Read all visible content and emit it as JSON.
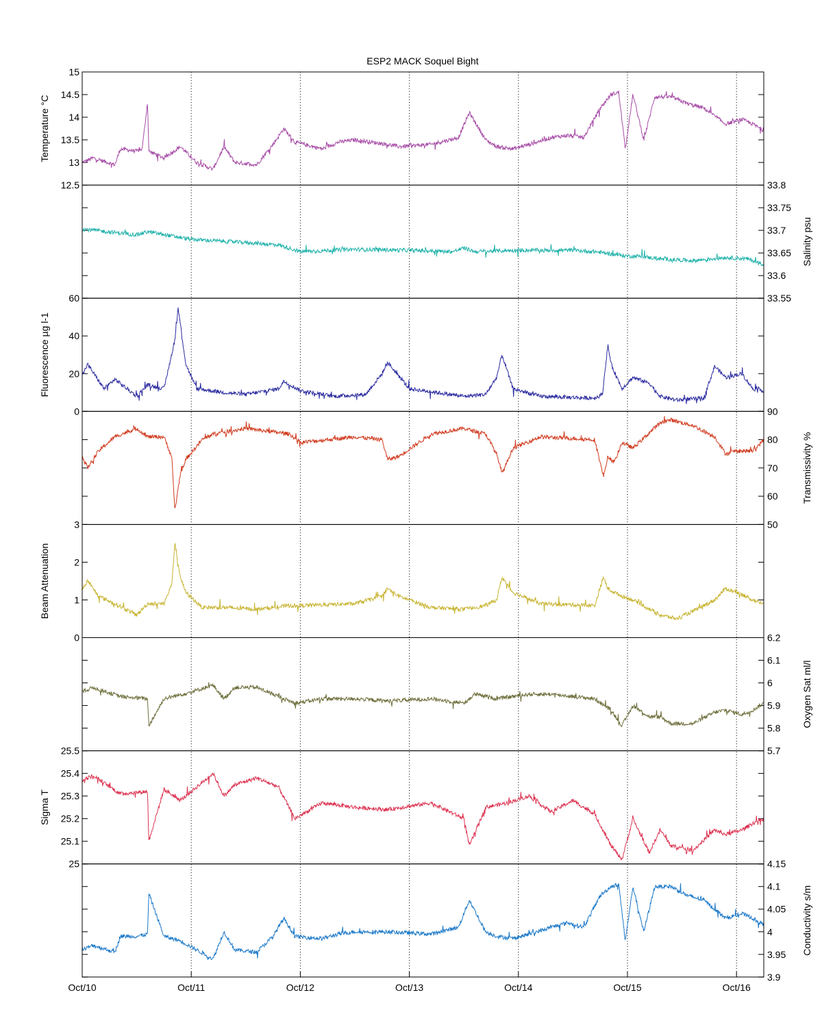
{
  "title": "ESP2 MACK  Soquel Bight",
  "x_ticks": [
    "Oct/10",
    "Oct/11",
    "Oct/12",
    "Oct/13",
    "Oct/14",
    "Oct/15",
    "Oct/16"
  ],
  "chart_data": [
    {
      "type": "line",
      "id": "temperature",
      "ylabel": "Temperature °C",
      "axis_side": "left",
      "ylim": [
        12.5,
        15
      ],
      "yticks": [
        "12.5",
        "13",
        "13.5",
        "14",
        "14.5",
        "15"
      ],
      "color": "#a64ca6",
      "x": [
        0,
        0.1,
        0.3,
        0.35,
        0.5,
        0.55,
        0.6,
        0.61,
        0.75,
        0.9,
        1.05,
        1.2,
        1.3,
        1.4,
        1.6,
        1.75,
        1.85,
        1.95,
        2.2,
        2.35,
        2.5,
        2.8,
        2.9,
        3.2,
        3.45,
        3.55,
        3.7,
        3.8,
        3.95,
        4.1,
        4.3,
        4.45,
        4.6,
        4.75,
        4.85,
        4.92,
        4.98,
        5.05,
        5.15,
        5.25,
        5.4,
        5.55,
        5.7,
        5.9,
        6.05,
        6.15,
        6.25
      ],
      "values": [
        13.0,
        13.1,
        12.95,
        13.3,
        13.25,
        13.3,
        14.35,
        13.25,
        13.1,
        13.35,
        13.0,
        12.85,
        13.35,
        13.0,
        12.95,
        13.4,
        13.75,
        13.45,
        13.3,
        13.45,
        13.5,
        13.4,
        13.35,
        13.4,
        13.55,
        14.1,
        13.5,
        13.35,
        13.3,
        13.4,
        13.55,
        13.6,
        13.55,
        14.2,
        14.5,
        14.55,
        13.3,
        14.5,
        13.5,
        14.45,
        14.45,
        14.3,
        14.2,
        13.85,
        13.95,
        13.85,
        13.7
      ]
    },
    {
      "type": "line",
      "id": "salinity",
      "ylabel": "Salinity psu",
      "axis_side": "right",
      "ylim": [
        33.55,
        33.8
      ],
      "yticks": [
        "33.55",
        "33.6",
        "33.65",
        "33.7",
        "33.75",
        "33.8"
      ],
      "color": "#20b2aa",
      "x": [
        0,
        0.5,
        0.6,
        1.0,
        1.5,
        1.8,
        2.0,
        2.5,
        3.0,
        3.4,
        3.5,
        3.6,
        4.0,
        4.5,
        4.7,
        5.0,
        5.1,
        5.3,
        5.6,
        5.9,
        6.1,
        6.25
      ],
      "values": [
        33.703,
        33.69,
        33.697,
        33.68,
        33.673,
        33.668,
        33.653,
        33.658,
        33.656,
        33.653,
        33.661,
        33.653,
        33.656,
        33.656,
        33.653,
        33.643,
        33.643,
        33.637,
        33.633,
        33.64,
        33.637,
        33.625
      ]
    },
    {
      "type": "line",
      "id": "fluorescence",
      "ylabel": "Fluorescence µg l-1",
      "axis_side": "left",
      "ylim": [
        0,
        60
      ],
      "yticks": [
        "0",
        "20",
        "40",
        "60"
      ],
      "color": "#2b2ba0",
      "x": [
        0,
        0.05,
        0.2,
        0.3,
        0.5,
        0.6,
        0.75,
        0.85,
        0.88,
        0.95,
        1.05,
        1.3,
        1.5,
        1.8,
        1.85,
        2.0,
        2.3,
        2.6,
        2.75,
        2.8,
        3.0,
        3.5,
        3.7,
        3.8,
        3.85,
        3.95,
        4.2,
        4.7,
        4.77,
        4.82,
        4.85,
        4.95,
        5.05,
        5.2,
        5.3,
        5.45,
        5.7,
        5.8,
        5.9,
        6.05,
        6.15,
        6.25
      ],
      "values": [
        19,
        25,
        12,
        17,
        8,
        14,
        12,
        38,
        55,
        25,
        12,
        10,
        9,
        12,
        16,
        11,
        8,
        9,
        20,
        26,
        12,
        8,
        9,
        18,
        30,
        12,
        8,
        7,
        9,
        35,
        25,
        12,
        18,
        15,
        8,
        6,
        7,
        24,
        18,
        20,
        12,
        11
      ]
    },
    {
      "type": "line",
      "id": "transmissivity",
      "ylabel": "Transmissivity %",
      "axis_side": "right",
      "ylim": [
        50,
        90
      ],
      "yticks": [
        "50",
        "60",
        "70",
        "80",
        "90"
      ],
      "color": "#d03a1e",
      "x": [
        0,
        0.05,
        0.15,
        0.3,
        0.5,
        0.6,
        0.75,
        0.82,
        0.85,
        0.9,
        0.95,
        1.1,
        1.2,
        1.5,
        1.9,
        2.0,
        2.5,
        2.75,
        2.8,
        2.9,
        3.2,
        3.5,
        3.7,
        3.8,
        3.85,
        3.95,
        4.2,
        4.7,
        4.78,
        4.82,
        4.88,
        4.95,
        5.05,
        5.3,
        5.4,
        5.6,
        5.8,
        5.9,
        6.0,
        6.15,
        6.25
      ],
      "values": [
        74,
        70,
        76,
        81,
        84,
        81,
        81,
        74,
        55,
        68,
        73,
        80,
        82,
        84,
        82,
        79,
        81,
        80,
        73,
        74,
        82,
        84,
        82,
        75,
        68,
        77,
        81,
        80,
        67,
        74,
        72,
        79,
        77,
        86,
        87,
        85,
        81,
        75,
        76,
        76,
        80
      ]
    },
    {
      "type": "line",
      "id": "beam_attenuation",
      "ylabel": "Beam Attenuation",
      "axis_side": "left",
      "ylim": [
        0,
        3
      ],
      "yticks": [
        "0",
        "1",
        "2",
        "3"
      ],
      "color": "#c8b432",
      "x": [
        0,
        0.05,
        0.15,
        0.3,
        0.5,
        0.6,
        0.75,
        0.82,
        0.85,
        0.9,
        0.95,
        1.1,
        1.3,
        1.6,
        1.9,
        2.0,
        2.5,
        2.75,
        2.8,
        2.9,
        3.2,
        3.5,
        3.7,
        3.8,
        3.85,
        3.95,
        4.2,
        4.7,
        4.78,
        4.82,
        4.88,
        4.95,
        5.05,
        5.3,
        5.45,
        5.6,
        5.8,
        5.9,
        6.0,
        6.15,
        6.25
      ],
      "values": [
        1.3,
        1.5,
        1.1,
        0.9,
        0.6,
        0.9,
        0.9,
        1.4,
        2.5,
        1.6,
        1.2,
        0.8,
        0.8,
        0.75,
        0.85,
        0.85,
        0.9,
        1.1,
        1.3,
        1.1,
        0.8,
        0.75,
        0.85,
        1.0,
        1.6,
        1.2,
        0.9,
        0.85,
        1.6,
        1.3,
        1.2,
        1.1,
        1.0,
        0.6,
        0.5,
        0.7,
        1.0,
        1.3,
        1.2,
        1.0,
        0.9
      ]
    },
    {
      "type": "line",
      "id": "oxygen",
      "ylabel": "Oxygen Sat ml/l",
      "axis_side": "right",
      "ylim": [
        5.7,
        6.2
      ],
      "yticks": [
        "5.7",
        "5.8",
        "5.9",
        "6",
        "6.1",
        "6.2"
      ],
      "color": "#6e6e3c",
      "x": [
        0,
        0.1,
        0.35,
        0.6,
        0.61,
        0.75,
        1.0,
        1.2,
        1.3,
        1.4,
        1.6,
        1.8,
        1.95,
        2.2,
        2.5,
        2.8,
        3.2,
        3.5,
        3.6,
        3.8,
        4.1,
        4.3,
        4.5,
        4.7,
        4.85,
        4.95,
        5.05,
        5.2,
        5.3,
        5.4,
        5.6,
        5.8,
        5.9,
        6.05,
        6.15,
        6.25
      ],
      "values": [
        5.96,
        5.98,
        5.94,
        5.93,
        5.81,
        5.93,
        5.96,
        5.99,
        5.93,
        5.98,
        5.98,
        5.94,
        5.91,
        5.93,
        5.93,
        5.92,
        5.93,
        5.91,
        5.95,
        5.93,
        5.95,
        5.95,
        5.94,
        5.93,
        5.88,
        5.81,
        5.9,
        5.85,
        5.85,
        5.82,
        5.82,
        5.87,
        5.88,
        5.86,
        5.88,
        5.91
      ]
    },
    {
      "type": "line",
      "id": "sigma_t",
      "ylabel": "Sigma T",
      "axis_side": "left",
      "ylim": [
        25,
        25.5
      ],
      "yticks": [
        "25",
        "25.1",
        "25.2",
        "25.3",
        "25.4",
        "25.5"
      ],
      "color": "#dc3250",
      "x": [
        0,
        0.1,
        0.35,
        0.6,
        0.61,
        0.75,
        0.9,
        1.0,
        1.2,
        1.3,
        1.4,
        1.6,
        1.8,
        1.95,
        2.2,
        2.5,
        2.8,
        3.2,
        3.5,
        3.55,
        3.7,
        3.9,
        4.1,
        4.3,
        4.5,
        4.7,
        4.85,
        4.95,
        5.05,
        5.2,
        5.3,
        5.4,
        5.6,
        5.8,
        5.9,
        6.05,
        6.15,
        6.25
      ],
      "values": [
        25.37,
        25.39,
        25.31,
        25.32,
        25.1,
        25.33,
        25.28,
        25.32,
        25.4,
        25.3,
        25.35,
        25.38,
        25.34,
        25.2,
        25.27,
        25.25,
        25.24,
        25.27,
        25.2,
        25.08,
        25.25,
        25.27,
        25.3,
        25.23,
        25.28,
        25.22,
        25.08,
        25.02,
        25.2,
        25.05,
        25.15,
        25.08,
        25.06,
        25.15,
        25.13,
        25.15,
        25.18,
        25.2
      ]
    },
    {
      "type": "line",
      "id": "conductivity",
      "ylabel": "Conductivity s/m",
      "axis_side": "right",
      "ylim": [
        3.9,
        4.15
      ],
      "yticks": [
        "3.9",
        "3.95",
        "4",
        "4.05",
        "4.1",
        "4.15"
      ],
      "color": "#1a78c8",
      "x": [
        0,
        0.1,
        0.3,
        0.35,
        0.5,
        0.6,
        0.61,
        0.75,
        0.9,
        1.05,
        1.2,
        1.3,
        1.4,
        1.6,
        1.75,
        1.85,
        1.95,
        2.2,
        2.35,
        2.5,
        2.8,
        3.2,
        3.45,
        3.55,
        3.7,
        3.8,
        3.95,
        4.1,
        4.3,
        4.45,
        4.6,
        4.75,
        4.85,
        4.92,
        4.98,
        5.05,
        5.15,
        5.25,
        5.4,
        5.55,
        5.7,
        5.9,
        6.05,
        6.15,
        6.25
      ],
      "values": [
        3.96,
        3.97,
        3.955,
        3.99,
        3.99,
        3.995,
        4.085,
        3.99,
        3.98,
        3.96,
        3.94,
        4.0,
        3.96,
        3.955,
        3.99,
        4.03,
        3.99,
        3.985,
        3.995,
        4.0,
        4.0,
        3.995,
        4.01,
        4.07,
        4.0,
        3.99,
        3.985,
        3.995,
        4.01,
        4.02,
        4.01,
        4.08,
        4.1,
        4.105,
        3.98,
        4.1,
        4.0,
        4.1,
        4.1,
        4.08,
        4.07,
        4.03,
        4.04,
        4.03,
        4.015
      ]
    }
  ]
}
